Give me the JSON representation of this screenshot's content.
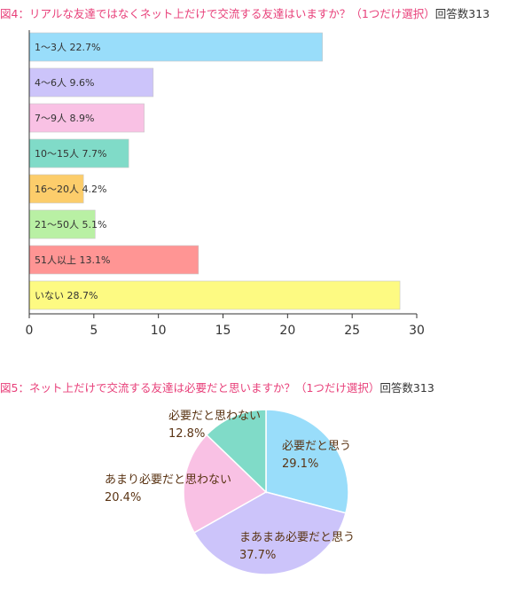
{
  "charts": {
    "bar": {
      "title_prefix": "図4：",
      "title_question": "リアルな友達ではなくネット上だけで交流する友達はいますか？（1つだけ選択）",
      "title_count": "回答数313"
    },
    "pie": {
      "title_prefix": "図5：",
      "title_question": "ネット上だけで交流する友達は必要だと思いますか？（1つだけ選択）",
      "title_count": "回答数313"
    }
  },
  "chart_data": [
    {
      "type": "bar",
      "orientation": "horizontal",
      "categories": [
        "1〜3人",
        "4〜6人",
        "7〜9人",
        "10〜15人",
        "16〜20人",
        "21〜50人",
        "51人以上",
        "いない"
      ],
      "values": [
        22.7,
        9.6,
        8.9,
        7.7,
        4.2,
        5.1,
        13.1,
        28.7
      ],
      "data_labels": [
        "1〜3人 22.7%",
        "4〜6人 9.6%",
        "7〜9人 8.9%",
        "10〜15人 7.7%",
        "16〜20人 4.2%",
        "21〜50人 5.1%",
        "51人以上 13.1%",
        "いない 28.7%"
      ],
      "colors": [
        "#99ddfa",
        "#ccc4fa",
        "#f9c1e4",
        "#80dbc8",
        "#fccd6b",
        "#b9f0a4",
        "#ff9594",
        "#fdfa82"
      ],
      "xlim": [
        0,
        30
      ],
      "xticks": [
        "0",
        "5",
        "10",
        "15",
        "20",
        "25",
        "30"
      ],
      "grid": false
    },
    {
      "type": "pie",
      "labels": [
        "必要だと思う",
        "まあまあ必要だと思う",
        "あまり必要だと思わない",
        "必要だと思わない"
      ],
      "values": [
        29.1,
        37.7,
        20.4,
        12.8
      ],
      "value_labels": [
        "29.1%",
        "37.7%",
        "20.4%",
        "12.8%"
      ],
      "colors": [
        "#99ddfa",
        "#ccc4fa",
        "#f9c1e4",
        "#80dbc8"
      ],
      "start": "12 o'clock",
      "direction": "clockwise"
    }
  ]
}
